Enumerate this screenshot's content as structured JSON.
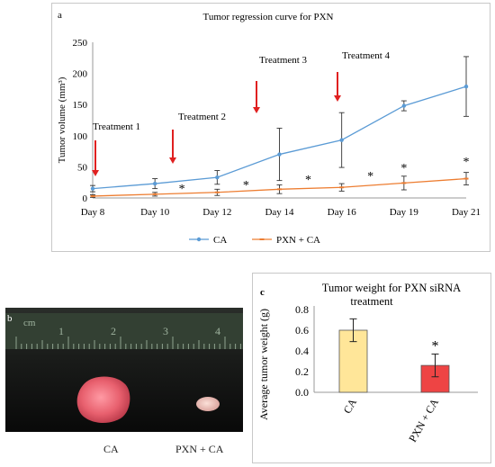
{
  "panel_a": {
    "label": "a",
    "chart_data": {
      "type": "line",
      "title": "Tumor regression curve for PXN",
      "ylabel": "Tumor volume (mm³)",
      "xlabel": "",
      "categories": [
        "Day 8",
        "Day 10",
        "Day 12",
        "Day 14",
        "Day 16",
        "Day 19",
        "Day 21"
      ],
      "ylim": [
        0,
        250
      ],
      "yticks": [
        "0",
        "50",
        "100",
        "150",
        "200",
        "250"
      ],
      "grid": false,
      "legend_position": "bottom",
      "series": [
        {
          "name": "CA",
          "color": "#5b9bd5",
          "values": [
            15,
            23,
            33,
            70,
            93,
            148,
            179
          ],
          "errors": [
            5,
            8,
            11,
            42,
            44,
            8,
            48
          ]
        },
        {
          "name": "PXN + CA",
          "color": "#ed7d31",
          "values": [
            3,
            6,
            9,
            14,
            17,
            24,
            31
          ],
          "errors": [
            2,
            3,
            5,
            7,
            6,
            11,
            10
          ]
        }
      ],
      "annotations": {
        "treatments": [
          "Treatment 1",
          "Treatment 2",
          "Treatment 3",
          "Treatment 4"
        ],
        "significance_marker": "*",
        "arrow_color": "#e02020"
      }
    }
  },
  "panel_b": {
    "label": "b",
    "ruler_unit": "cm",
    "ruler_numbers": [
      "1",
      "2",
      "3",
      "4"
    ],
    "captions": [
      "CA",
      "PXN + CA"
    ]
  },
  "panel_c": {
    "label": "c",
    "chart_data": {
      "type": "bar",
      "title": "Tumor weight for PXN siRNA treatment",
      "ylabel": "Average tumor weight (g)",
      "categories": [
        "CA",
        "PXN + CA"
      ],
      "values": [
        0.6,
        0.26
      ],
      "errors": [
        0.11,
        0.11
      ],
      "colors": [
        "#ffe699",
        "#ee4444"
      ],
      "ylim": [
        0,
        0.8
      ],
      "yticks": [
        "0.0",
        "0.2",
        "0.4",
        "0.6",
        "0.8"
      ],
      "significance_marker": "*"
    }
  }
}
